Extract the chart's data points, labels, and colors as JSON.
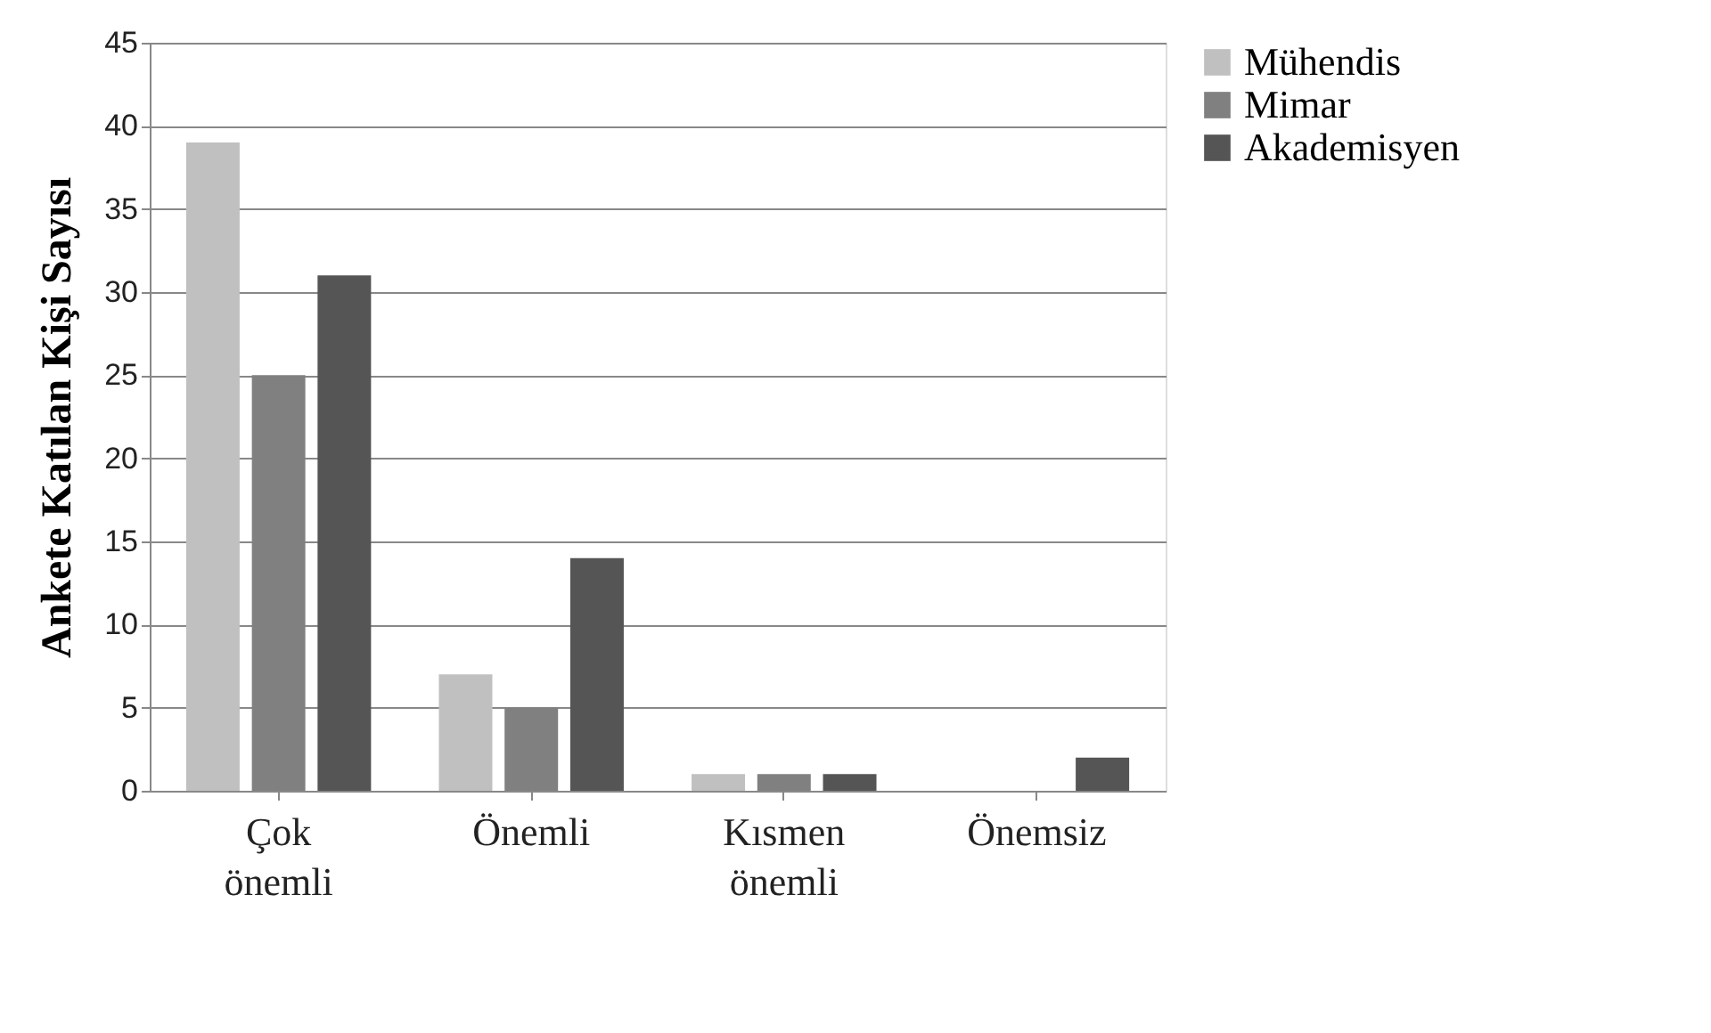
{
  "chart_data": {
    "type": "bar",
    "ylabel": "Ankete Katılan Kişi Sayısı",
    "categories": [
      "Çok önemli",
      "Önemli",
      "Kısmen önemli",
      "Önemsiz"
    ],
    "series": [
      {
        "name": "Mühendis",
        "color": "#c0c0c0",
        "values": [
          39,
          7,
          1,
          0
        ]
      },
      {
        "name": "Mimar",
        "color": "#808080",
        "values": [
          25,
          5,
          1,
          0
        ]
      },
      {
        "name": "Akademisyen",
        "color": "#555555",
        "values": [
          31,
          14,
          1,
          2
        ]
      }
    ],
    "ylim": [
      0,
      45
    ],
    "yticks": [
      0,
      5,
      10,
      15,
      20,
      25,
      30,
      35,
      40,
      45
    ],
    "grid": "y",
    "legend": "right"
  }
}
